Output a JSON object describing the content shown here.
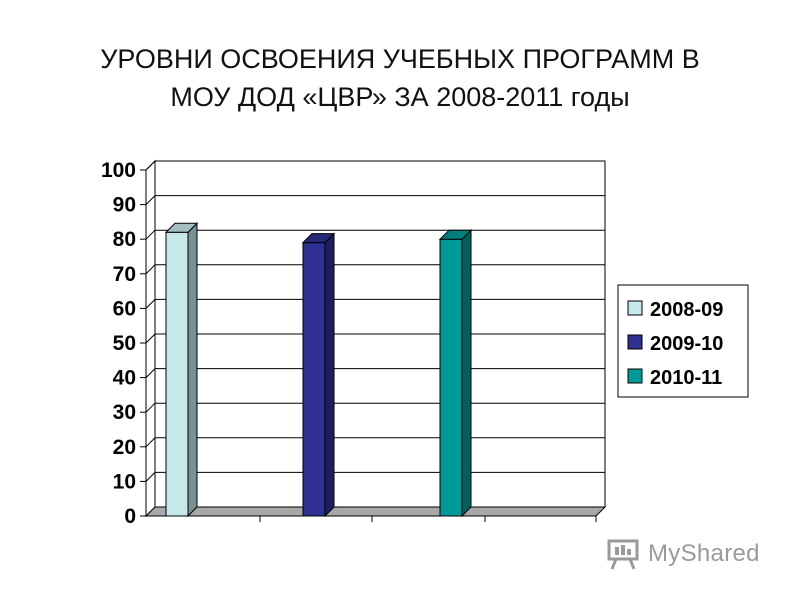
{
  "title": {
    "line1": "УРОВНИ ОСВОЕНИЯ УЧЕБНЫХ ПРОГРАММ В",
    "line2": "МОУ ДОД «ЦВР» ЗА 2008-2011 годы"
  },
  "chart_data": {
    "type": "bar",
    "style": "3d",
    "categories": [
      ""
    ],
    "series": [
      {
        "name": "2008-09",
        "value": 82,
        "color": "#c6e8ea"
      },
      {
        "name": "2009-10",
        "value": 79,
        "color": "#2e3192"
      },
      {
        "name": "2010-11",
        "value": 80,
        "color": "#009999"
      }
    ],
    "ylim": [
      0,
      100
    ],
    "yticks": [
      0,
      10,
      20,
      30,
      40,
      50,
      60,
      70,
      80,
      90,
      100
    ],
    "grid": true,
    "legend": "right"
  },
  "watermark": {
    "text": "MyShared"
  }
}
